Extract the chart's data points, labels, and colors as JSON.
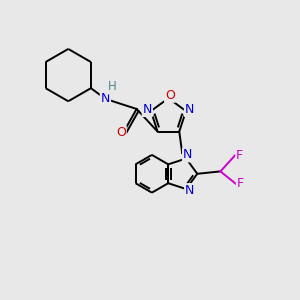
{
  "background_color": "#e8e8e8",
  "figure_size": [
    3.0,
    3.0
  ],
  "dpi": 100,
  "atom_colors": {
    "C": "#000000",
    "N": "#0000cc",
    "O": "#cc0000",
    "F": "#cc00cc",
    "H": "#4a8a8a"
  },
  "bond_color": "#000000",
  "bond_width": 1.4,
  "font_size": 8.5
}
